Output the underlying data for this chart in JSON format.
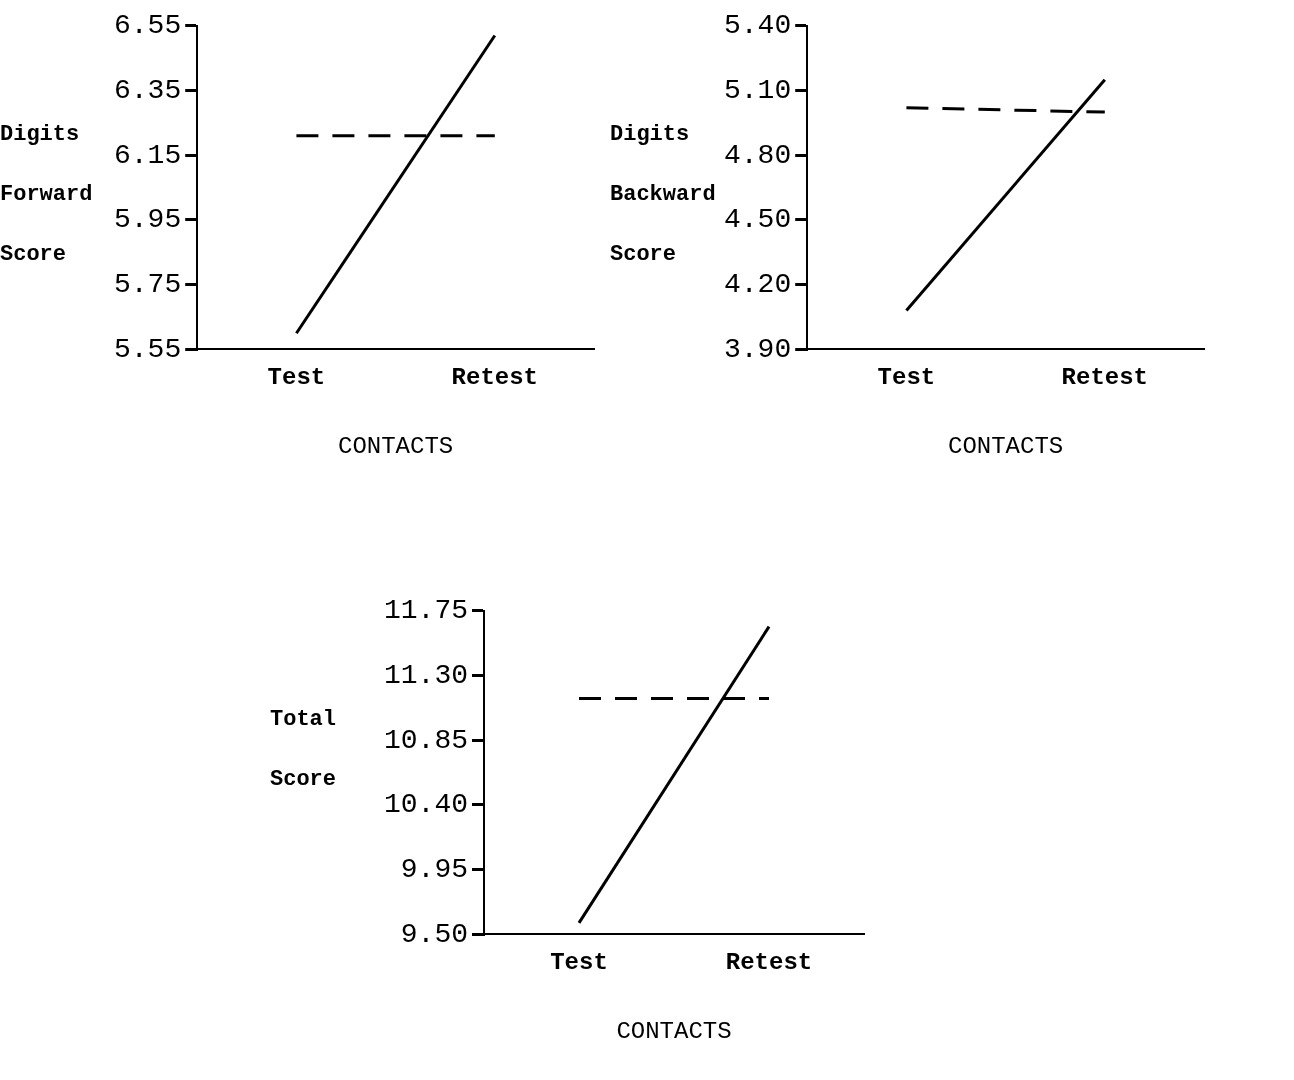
{
  "chart_data": [
    {
      "type": "line",
      "ylabel": "Digits Forward Score",
      "xlabel": "CONTACTS",
      "categories": [
        "Test",
        "Retest"
      ],
      "ylim": [
        5.55,
        6.55
      ],
      "yticks": [
        5.55,
        5.75,
        5.95,
        6.15,
        6.35,
        6.55
      ],
      "grid": false,
      "legend": false,
      "marker": "none",
      "series": [
        {
          "color": "#000000",
          "values": [
            5.6,
            6.52
          ],
          "line_style": "solid"
        },
        {
          "color": "#000000",
          "values": [
            6.21,
            6.21
          ],
          "line_style": "dashed"
        }
      ]
    },
    {
      "type": "line",
      "ylabel": "Digits Backward Score",
      "xlabel": "CONTACTS",
      "categories": [
        "Test",
        "Retest"
      ],
      "ylim": [
        3.9,
        5.4
      ],
      "yticks": [
        {
          "value": 3.9,
          "label": "3.90"
        },
        {
          "value": 4.2,
          "label": "4.20"
        },
        {
          "value": 4.5,
          "label": "4.50"
        },
        {
          "value": 4.8,
          "label": "4.80"
        },
        {
          "value": 5.1,
          "label": "5.10"
        },
        {
          "value": 5.4,
          "label": "5.40"
        }
      ],
      "grid": false,
      "legend": false,
      "marker": "none",
      "series": [
        {
          "color": "#000000",
          "values": [
            4.08,
            5.15
          ],
          "line_style": "solid"
        },
        {
          "color": "#000000",
          "values": [
            5.02,
            5.0
          ],
          "line_style": "dashed"
        }
      ]
    },
    {
      "type": "line",
      "ylabel": "Total Score",
      "xlabel": "CONTACTS",
      "categories": [
        "Test",
        "Retest"
      ],
      "ylim": [
        9.5,
        11.75
      ],
      "yticks": [
        {
          "value": 9.5,
          "label": "9.50"
        },
        9.95,
        {
          "value": 10.4,
          "label": "10.40"
        },
        10.85,
        {
          "value": 11.3,
          "label": "11.30"
        },
        11.75
      ],
      "grid": false,
      "legend": false,
      "marker": "none",
      "series": [
        {
          "color": "#000000",
          "values": [
            9.58,
            11.64
          ],
          "line_style": "solid"
        },
        {
          "color": "#000000",
          "values": [
            11.14,
            11.14
          ],
          "line_style": "dashed"
        }
      ]
    }
  ]
}
